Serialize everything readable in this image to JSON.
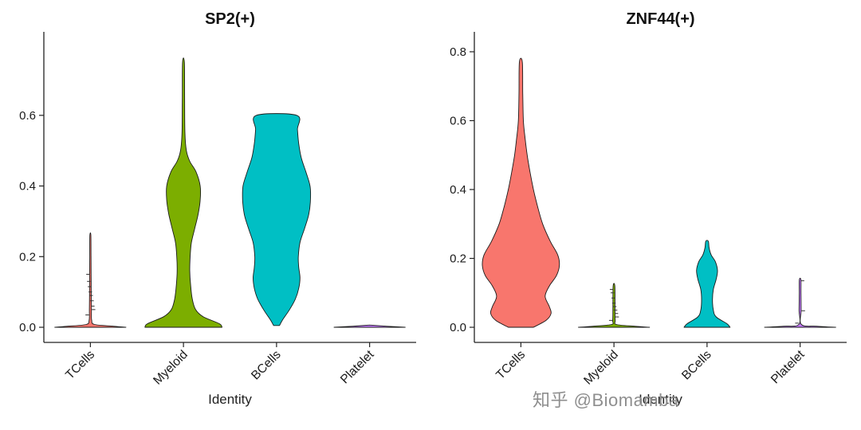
{
  "watermark": {
    "text": "知乎 @Biomamba"
  },
  "chart_data": [
    {
      "type": "violin",
      "title": "SP2(+)",
      "xlabel": "Identity",
      "ylabel": "",
      "categories": [
        "TCells",
        "Myeloid",
        "BCells",
        "Platelet"
      ],
      "ylim": [
        0,
        0.78
      ],
      "yticks": [
        0.0,
        0.2,
        0.4,
        0.6
      ],
      "grid": false,
      "legend": "none",
      "violins": [
        {
          "category": "TCells",
          "color": "#F8766D",
          "max_value": 0.26,
          "profile": [
            [
              0,
              0.85
            ],
            [
              0.003,
              0.55
            ],
            [
              0.008,
              0.1
            ],
            [
              0.02,
              0.03
            ],
            [
              0.05,
              0.025
            ],
            [
              0.1,
              0.02
            ],
            [
              0.15,
              0.018
            ],
            [
              0.2,
              0.015
            ],
            [
              0.26,
              0.012
            ]
          ],
          "points": [
            0.035,
            0.05,
            0.06,
            0.075,
            0.09,
            0.1,
            0.115,
            0.13,
            0.15
          ]
        },
        {
          "category": "Myeloid",
          "color": "#7CAE00",
          "max_value": 0.75,
          "profile": [
            [
              0,
              0.92
            ],
            [
              0.01,
              0.86
            ],
            [
              0.03,
              0.47
            ],
            [
              0.05,
              0.29
            ],
            [
              0.08,
              0.21
            ],
            [
              0.12,
              0.17
            ],
            [
              0.16,
              0.15
            ],
            [
              0.2,
              0.16
            ],
            [
              0.24,
              0.19
            ],
            [
              0.28,
              0.27
            ],
            [
              0.32,
              0.35
            ],
            [
              0.36,
              0.4
            ],
            [
              0.4,
              0.4
            ],
            [
              0.44,
              0.3
            ],
            [
              0.47,
              0.15
            ],
            [
              0.5,
              0.07
            ],
            [
              0.55,
              0.035
            ],
            [
              0.65,
              0.028
            ],
            [
              0.75,
              0.022
            ]
          ],
          "points": []
        },
        {
          "category": "BCells",
          "color": "#00BFC4",
          "max_value": 0.6,
          "profile": [
            [
              0.005,
              0.07
            ],
            [
              0.02,
              0.14
            ],
            [
              0.05,
              0.31
            ],
            [
              0.08,
              0.45
            ],
            [
              0.11,
              0.53
            ],
            [
              0.14,
              0.56
            ],
            [
              0.17,
              0.53
            ],
            [
              0.2,
              0.52
            ],
            [
              0.24,
              0.56
            ],
            [
              0.28,
              0.67
            ],
            [
              0.32,
              0.77
            ],
            [
              0.36,
              0.81
            ],
            [
              0.4,
              0.8
            ],
            [
              0.44,
              0.7
            ],
            [
              0.48,
              0.59
            ],
            [
              0.52,
              0.53
            ],
            [
              0.56,
              0.5
            ],
            [
              0.6,
              0.48
            ]
          ],
          "points": []
        },
        {
          "category": "Platelet",
          "color": "#C77CFF",
          "max_value": 0.0,
          "profile": [
            [
              0,
              0.85
            ],
            [
              0.003,
              0.4
            ],
            [
              0.006,
              0.03
            ]
          ],
          "points": []
        }
      ]
    },
    {
      "type": "violin",
      "title": "ZNF44(+)",
      "xlabel": "Identity",
      "ylabel": "",
      "categories": [
        "TCells",
        "Myeloid",
        "BCells",
        "Platelet"
      ],
      "ylim": [
        0,
        0.8
      ],
      "yticks": [
        0.0,
        0.2,
        0.4,
        0.6,
        0.8
      ],
      "grid": false,
      "legend": "none",
      "violins": [
        {
          "category": "TCells",
          "color": "#F8766D",
          "max_value": 0.77,
          "profile": [
            [
              0,
              0.3
            ],
            [
              0.02,
              0.6
            ],
            [
              0.04,
              0.72
            ],
            [
              0.06,
              0.68
            ],
            [
              0.09,
              0.58
            ],
            [
              0.12,
              0.68
            ],
            [
              0.15,
              0.85
            ],
            [
              0.18,
              0.92
            ],
            [
              0.21,
              0.88
            ],
            [
              0.25,
              0.7
            ],
            [
              0.3,
              0.52
            ],
            [
              0.35,
              0.4
            ],
            [
              0.4,
              0.3
            ],
            [
              0.45,
              0.22
            ],
            [
              0.5,
              0.15
            ],
            [
              0.55,
              0.1
            ],
            [
              0.6,
              0.06
            ],
            [
              0.68,
              0.045
            ],
            [
              0.77,
              0.035
            ]
          ],
          "points": []
        },
        {
          "category": "Myeloid",
          "color": "#7CAE00",
          "max_value": 0.12,
          "profile": [
            [
              0,
              0.85
            ],
            [
              0.003,
              0.5
            ],
            [
              0.008,
              0.06
            ],
            [
              0.02,
              0.03
            ],
            [
              0.06,
              0.025
            ],
            [
              0.12,
              0.02
            ]
          ],
          "points": [
            0.02,
            0.03,
            0.04,
            0.05,
            0.06,
            0.07,
            0.085,
            0.1,
            0.11
          ]
        },
        {
          "category": "BCells",
          "color": "#00BFC4",
          "max_value": 0.25,
          "profile": [
            [
              0,
              0.55
            ],
            [
              0.01,
              0.48
            ],
            [
              0.03,
              0.22
            ],
            [
              0.05,
              0.15
            ],
            [
              0.08,
              0.13
            ],
            [
              0.11,
              0.15
            ],
            [
              0.14,
              0.22
            ],
            [
              0.165,
              0.25
            ],
            [
              0.19,
              0.2
            ],
            [
              0.21,
              0.1
            ],
            [
              0.23,
              0.05
            ],
            [
              0.25,
              0.03
            ]
          ],
          "points": []
        },
        {
          "category": "Platelet",
          "color": "#C77CFF",
          "max_value": 0.138,
          "profile": [
            [
              0,
              0.85
            ],
            [
              0.003,
              0.4
            ],
            [
              0.008,
              0.03
            ],
            [
              0.05,
              0.025
            ],
            [
              0.1,
              0.02
            ],
            [
              0.138,
              0.018
            ]
          ],
          "points": [
            0.012,
            0.048,
            0.135
          ]
        }
      ]
    }
  ]
}
